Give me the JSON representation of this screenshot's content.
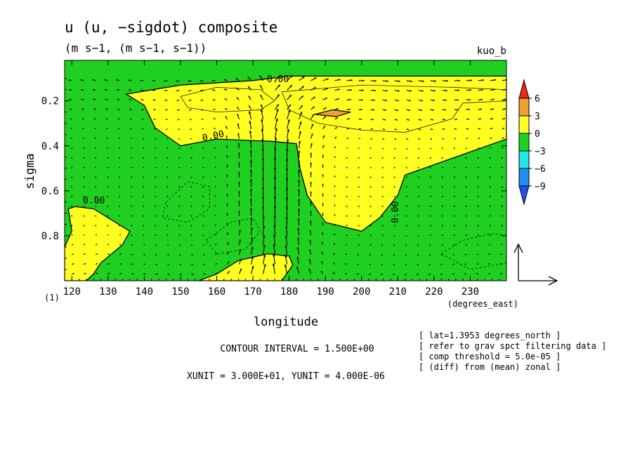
{
  "chart_data": {
    "type": "contour",
    "title": "u (u, −sigdot) composite",
    "subtitle": "(m s−1, (m s−1, s−1))",
    "tag": "kuo_b",
    "xlabel": "longitude",
    "xunit_label": "(degrees_east)",
    "ylabel": "sigma",
    "corner_label": "(1)",
    "xlim": [
      118,
      240
    ],
    "ylim": [
      1.0,
      0.02
    ],
    "xticks": [
      "120",
      "130",
      "140",
      "150",
      "160",
      "170",
      "180",
      "190",
      "200",
      "210",
      "220",
      "230"
    ],
    "yticks": [
      "0.2",
      "0.4",
      "0.6",
      "0.8"
    ],
    "contour_labels": [
      "0.00",
      "0.00",
      "0.00",
      "0.00"
    ],
    "colorbar": {
      "levels": [
        "6",
        "3",
        "0",
        "−3",
        "−6",
        "−9"
      ],
      "colors": [
        "#e8281c",
        "#f0a030",
        "#ffff20",
        "#20d020",
        "#20e8e8",
        "#2090f0",
        "#2050f0"
      ]
    },
    "fill_colors": {
      "positive": "#ffff20",
      "negative": "#20d020",
      "strong": "#f0a030"
    },
    "regions": {
      "upper_positive": [
        [
          135,
          0.17
        ],
        [
          150,
          0.13
        ],
        [
          170,
          0.11
        ],
        [
          180,
          0.09
        ],
        [
          240,
          0.09
        ],
        [
          240,
          0.37
        ],
        [
          212,
          0.53
        ],
        [
          210,
          0.62
        ],
        [
          205,
          0.72
        ],
        [
          200,
          0.78
        ],
        [
          190,
          0.74
        ],
        [
          185,
          0.62
        ],
        [
          183,
          0.5
        ],
        [
          182,
          0.39
        ],
        [
          175,
          0.38
        ],
        [
          160,
          0.37
        ],
        [
          150,
          0.4
        ],
        [
          143,
          0.32
        ],
        [
          140,
          0.22
        ]
      ],
      "strong_core": [
        [
          187,
          0.26
        ],
        [
          192,
          0.24
        ],
        [
          197,
          0.25
        ],
        [
          193,
          0.27
        ]
      ],
      "left_lower_positive": [
        [
          118,
          0.85
        ],
        [
          120,
          0.78
        ],
        [
          119,
          0.68
        ],
        [
          121,
          0.67
        ],
        [
          126,
          0.68
        ],
        [
          132,
          0.74
        ],
        [
          136,
          0.78
        ],
        [
          134,
          0.84
        ],
        [
          128,
          0.92
        ],
        [
          126,
          0.97
        ],
        [
          124,
          1.0
        ],
        [
          118,
          1.0
        ]
      ],
      "bottom_positive": [
        [
          155,
          1.0
        ],
        [
          160,
          0.97
        ],
        [
          166,
          0.91
        ],
        [
          174,
          0.88
        ],
        [
          180,
          0.89
        ],
        [
          181,
          0.93
        ],
        [
          178,
          1.0
        ]
      ]
    },
    "negative_dashed_contours": [
      [
        [
          146,
          0.65
        ],
        [
          152,
          0.56
        ],
        [
          158,
          0.58
        ],
        [
          158,
          0.68
        ],
        [
          152,
          0.74
        ],
        [
          145,
          0.72
        ]
      ],
      [
        [
          157,
          0.82
        ],
        [
          164,
          0.74
        ],
        [
          170,
          0.72
        ],
        [
          172,
          0.78
        ],
        [
          168,
          0.86
        ],
        [
          160,
          0.88
        ]
      ],
      [
        [
          222,
          0.88
        ],
        [
          228,
          0.82
        ],
        [
          236,
          0.79
        ],
        [
          240,
          0.8
        ],
        [
          240,
          0.92
        ],
        [
          230,
          0.95
        ]
      ]
    ],
    "positive_thin_contours": [
      [
        [
          150,
          0.18
        ],
        [
          160,
          0.14
        ],
        [
          172,
          0.15
        ],
        [
          176,
          0.2
        ],
        [
          172,
          0.24
        ],
        [
          160,
          0.25
        ],
        [
          152,
          0.23
        ]
      ],
      [
        [
          178,
          0.16
        ],
        [
          200,
          0.13
        ],
        [
          225,
          0.14
        ],
        [
          240,
          0.15
        ],
        [
          240,
          0.2
        ],
        [
          228,
          0.21
        ],
        [
          225,
          0.28
        ],
        [
          212,
          0.34
        ],
        [
          200,
          0.33
        ],
        [
          188,
          0.3
        ],
        [
          180,
          0.24
        ]
      ]
    ],
    "vector_field": {
      "xunit": 30.0,
      "yunit": 4e-06,
      "descent_core_lon": [
        165,
        185
      ],
      "ascent_region": "upward arrows concentrated near 165-185 east, converging at upper levels"
    },
    "info": {
      "contour_interval": "CONTOUR INTERVAL = 1.500E+00",
      "units_line": "XUNIT = 3.000E+01, YUNIT = 4.000E-06",
      "notes": [
        "[ lat=1.3953 degrees_north ]",
        "[ refer to grav spct filtering data ]",
        "[ comp threshold = 5.0e-05 ]",
        "[ (diff) from (mean) zonal ]"
      ]
    }
  }
}
